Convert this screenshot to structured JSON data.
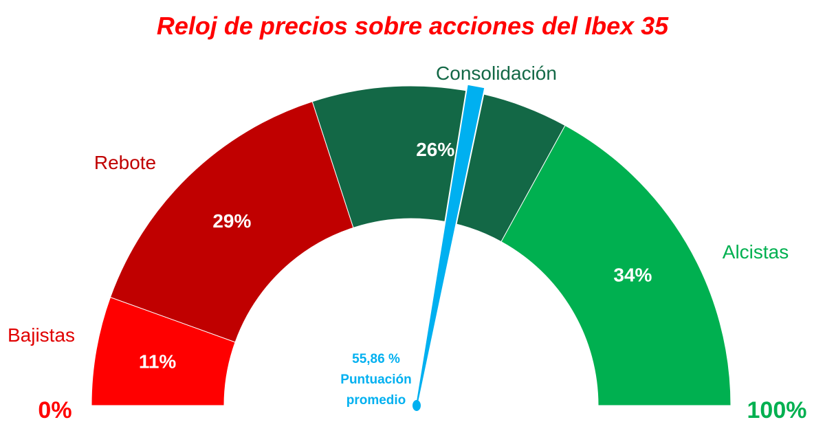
{
  "chart_data": {
    "type": "gauge",
    "title": "Reloj de precios sobre acciones del Ibex 35",
    "range": [
      0,
      100
    ],
    "min_label": "0%",
    "max_label": "100%",
    "segments": [
      {
        "name": "Bajistas",
        "value": 11,
        "label": "11%",
        "color": "#ff0000",
        "label_color": "#e00000"
      },
      {
        "name": "Rebote",
        "value": 29,
        "label": "29%",
        "color": "#c00000",
        "label_color": "#c00000"
      },
      {
        "name": "Consolidación",
        "value": 26,
        "label": "26%",
        "color": "#136846",
        "label_color": "#136846"
      },
      {
        "name": "Alcistas",
        "value": 34,
        "label": "34%",
        "color": "#00b050",
        "label_color": "#00b050"
      }
    ],
    "needle": {
      "value": 55.86,
      "value_label": "55,86 %",
      "caption_line1": "Puntuación",
      "caption_line2": "promedio",
      "color": "#00b0f0"
    },
    "colors": {
      "title": "#ff0000",
      "min_label": "#ff0000",
      "max_label": "#00b050"
    }
  }
}
